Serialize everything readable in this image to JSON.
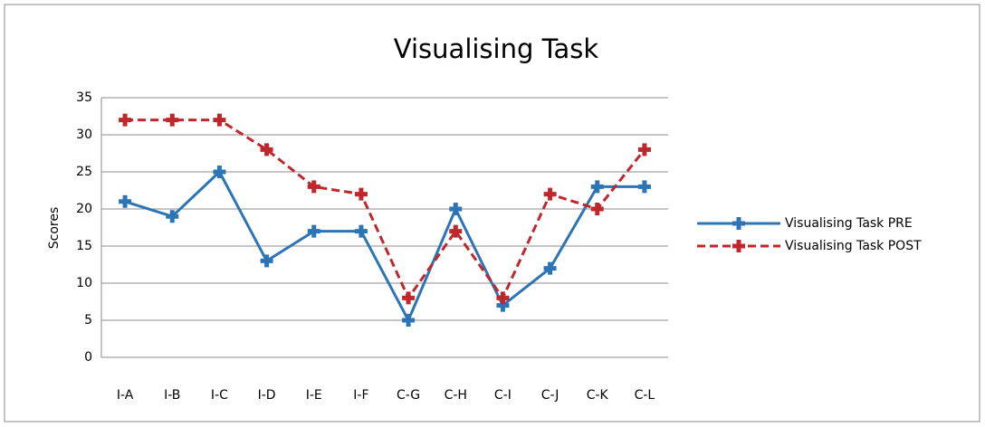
{
  "chart_data": {
    "type": "line",
    "title": "Visualising Task",
    "y_label": "Scores",
    "categories": [
      "I-A",
      "I-B",
      "I-C",
      "I-D",
      "I-E",
      "I-F",
      "C-G",
      "C-H",
      "C-I",
      "C-J",
      "C-K",
      "C-L"
    ],
    "series": [
      {
        "name": "Visualising Task PRE",
        "color": "#2c74b5",
        "line_style": "solid",
        "values": [
          21,
          19,
          25,
          13,
          17,
          17,
          5,
          20,
          7,
          12,
          23,
          23
        ]
      },
      {
        "name": "Visualising Task POST",
        "color": "#c0272d",
        "line_style": "dashed",
        "values": [
          32,
          32,
          32,
          28,
          23,
          22,
          8,
          17,
          8,
          22,
          20,
          28
        ]
      }
    ],
    "ylim": [
      0,
      35
    ],
    "yticks": [
      0,
      5,
      10,
      15,
      20,
      25,
      30,
      35
    ],
    "grid": true,
    "legend": "right"
  }
}
